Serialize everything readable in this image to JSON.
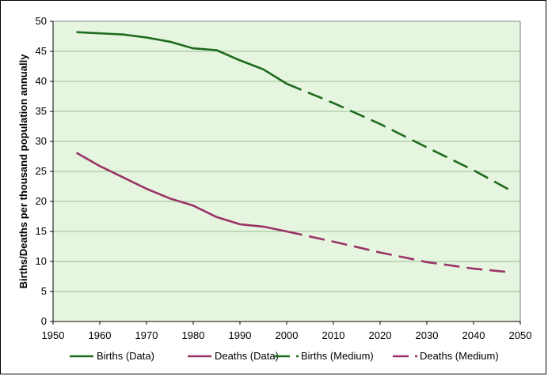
{
  "chart_data": {
    "type": "line",
    "title": "",
    "xlabel": "",
    "ylabel": "Births/Deaths per thousand population annually",
    "xlim": [
      1950,
      2050
    ],
    "ylim": [
      0,
      50
    ],
    "x_ticks": [
      "1950",
      "1960",
      "1970",
      "1980",
      "1990",
      "2000",
      "2010",
      "2020",
      "2030",
      "2040",
      "2050"
    ],
    "y_ticks": [
      "0",
      "5",
      "10",
      "15",
      "20",
      "25",
      "30",
      "35",
      "40",
      "45",
      "50"
    ],
    "grid": true,
    "legend_position": "bottom",
    "colors": {
      "births": "#1e6b1e",
      "deaths": "#993366",
      "plot_background": "#e6f5e0",
      "gridline": "#9bbf92"
    },
    "series": [
      {
        "name": "Births (Data)",
        "style": "solid",
        "color": "#1e6b1e",
        "x": [
          1955,
          1960,
          1965,
          1970,
          1975,
          1980,
          1985,
          1990,
          1995,
          2000
        ],
        "y": [
          48.2,
          48.0,
          47.8,
          47.3,
          46.6,
          45.5,
          45.2,
          43.5,
          42.0,
          39.6
        ]
      },
      {
        "name": "Deaths (Data)",
        "style": "solid",
        "color": "#993366",
        "x": [
          1955,
          1960,
          1965,
          1970,
          1975,
          1980,
          1985,
          1990,
          1995,
          2000
        ],
        "y": [
          28.1,
          25.9,
          24.0,
          22.1,
          20.5,
          19.3,
          17.4,
          16.2,
          15.8,
          15.0
        ]
      },
      {
        "name": "Births (Medium)",
        "style": "dashed",
        "color": "#1e6b1e",
        "x": [
          2000,
          2010,
          2020,
          2030,
          2040,
          2048
        ],
        "y": [
          39.6,
          36.4,
          32.9,
          29.0,
          25.2,
          21.8
        ]
      },
      {
        "name": "Deaths (Medium)",
        "style": "dashed",
        "color": "#993366",
        "x": [
          2000,
          2010,
          2020,
          2030,
          2040,
          2048
        ],
        "y": [
          15.0,
          13.3,
          11.5,
          9.9,
          8.8,
          8.2
        ]
      }
    ]
  }
}
